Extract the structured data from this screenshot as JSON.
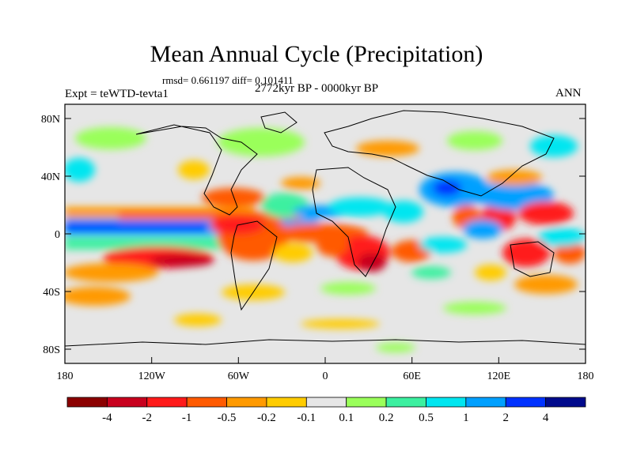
{
  "title": "Mean Annual Cycle (Precipitation)",
  "stats": "rmsd= 0.661197 diff= 0.101411",
  "period": "2772kyr BP - 0000kyr BP",
  "experiment": "Expt = teWTD-tevta1",
  "season": "ANN",
  "lat_labels": [
    "80N",
    "40N",
    "0",
    "40S",
    "80S"
  ],
  "lon_labels": [
    "180",
    "120W",
    "60W",
    "0",
    "60E",
    "120E",
    "180"
  ],
  "legend": {
    "labels": [
      "-4",
      "-2",
      "-1",
      "-0.5",
      "-0.2",
      "-0.1",
      "0.1",
      "0.2",
      "0.5",
      "1",
      "2",
      "4"
    ],
    "colors": [
      "#8b0000",
      "#c8001e",
      "#ff1a1a",
      "#ff5a00",
      "#ff9a00",
      "#ffcc00",
      "#e6e6e6",
      "#9aff5a",
      "#3cf0a0",
      "#00e6f0",
      "#00a0ff",
      "#0032ff",
      "#000a8c"
    ]
  }
}
